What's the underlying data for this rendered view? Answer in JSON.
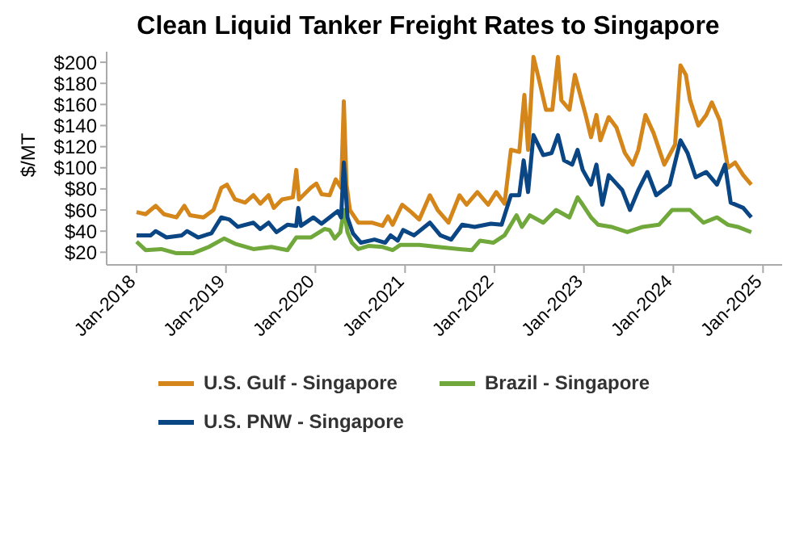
{
  "chart_data": {
    "type": "line",
    "title": "Clean Liquid Tanker Freight Rates to Singapore",
    "ylabel": "$/MT",
    "xlim": [
      "2017-09-01",
      "2025-03-20"
    ],
    "xticks": [
      {
        "value": "2018-01-01",
        "label": "Jan-2018"
      },
      {
        "value": "2019-01-01",
        "label": "Jan-2019"
      },
      {
        "value": "2020-01-01",
        "label": "Jan-2020"
      },
      {
        "value": "2021-01-01",
        "label": "Jan-2021"
      },
      {
        "value": "2022-01-01",
        "label": "Jan-2022"
      },
      {
        "value": "2023-01-01",
        "label": "Jan-2023"
      },
      {
        "value": "2024-01-01",
        "label": "Jan-2024"
      },
      {
        "value": "2025-01-01",
        "label": "Jan-2025"
      }
    ],
    "ylim": [
      8,
      210
    ],
    "yticks": [
      {
        "value": 20,
        "label": "$20"
      },
      {
        "value": 40,
        "label": "$40"
      },
      {
        "value": 60,
        "label": "$60"
      },
      {
        "value": 80,
        "label": "$80"
      },
      {
        "value": 100,
        "label": "$100"
      },
      {
        "value": 120,
        "label": "$120"
      },
      {
        "value": 140,
        "label": "$140"
      },
      {
        "value": 160,
        "label": "$160"
      },
      {
        "value": 180,
        "label": "$180"
      },
      {
        "value": 200,
        "label": "$200"
      }
    ],
    "grid": false,
    "legend": "bottom",
    "marker": "none",
    "line_style": "solid",
    "series": [
      {
        "name": "U.S. Gulf - Singapore",
        "color": "#d4861a",
        "x": [
          "2018-01-01",
          "2018-02-07",
          "2018-03-20",
          "2018-04-23",
          "2018-06-13",
          "2018-07-15",
          "2018-08-07",
          "2018-10-01",
          "2018-11-11",
          "2018-12-13",
          "2019-01-05",
          "2019-02-07",
          "2019-03-20",
          "2019-04-23",
          "2019-05-21",
          "2019-06-24",
          "2019-07-15",
          "2019-08-18",
          "2019-10-01",
          "2019-10-15",
          "2019-10-26",
          "2019-12-13",
          "2020-01-05",
          "2020-01-26",
          "2020-02-28",
          "2020-03-24",
          "2020-04-15",
          "2020-04-26",
          "2020-05-07",
          "2020-05-21",
          "2020-06-24",
          "2020-08-18",
          "2020-10-01",
          "2020-10-23",
          "2020-11-11",
          "2020-12-20",
          "2021-01-26",
          "2021-02-28",
          "2021-04-12",
          "2021-05-14",
          "2021-06-27",
          "2021-08-11",
          "2021-09-09",
          "2021-10-23",
          "2021-12-06",
          "2022-01-08",
          "2022-02-11",
          "2022-03-09",
          "2022-04-12",
          "2022-05-03",
          "2022-05-18",
          "2022-06-09",
          "2022-06-27",
          "2022-07-30",
          "2022-08-25",
          "2022-09-17",
          "2022-10-01",
          "2022-11-03",
          "2022-11-25",
          "2022-12-17",
          "2023-01-08",
          "2023-01-30",
          "2023-02-21",
          "2023-03-09",
          "2023-04-12",
          "2023-05-14",
          "2023-06-17",
          "2023-07-19",
          "2023-08-11",
          "2023-09-09",
          "2023-10-12",
          "2023-11-25",
          "2024-01-08",
          "2024-01-30",
          "2024-02-21",
          "2024-03-09",
          "2024-04-12",
          "2024-05-14",
          "2024-06-06",
          "2024-07-08",
          "2024-08-11",
          "2024-09-09",
          "2024-10-12",
          "2024-11-14"
        ],
        "values": [
          58,
          56,
          64,
          56,
          53,
          64,
          55,
          53,
          60,
          81,
          84,
          70,
          67,
          74,
          66,
          74,
          62,
          70,
          72,
          98,
          70,
          81,
          85,
          75,
          74,
          89,
          81,
          163,
          84,
          60,
          48,
          48,
          45,
          54,
          46,
          65,
          58,
          51,
          74,
          60,
          48,
          74,
          65,
          77,
          65,
          77,
          66,
          117,
          115,
          169,
          117,
          205,
          188,
          155,
          155,
          205,
          164,
          155,
          188,
          169,
          150,
          129,
          150,
          126,
          148,
          138,
          114,
          103,
          117,
          150,
          133,
          103,
          122,
          197,
          188,
          164,
          140,
          150,
          162,
          145,
          100,
          105,
          93,
          84
        ]
      },
      {
        "name": "Brazil - Singapore",
        "color": "#70a83b",
        "x": [
          "2018-01-01",
          "2018-02-07",
          "2018-04-12",
          "2018-06-13",
          "2018-08-18",
          "2018-10-23",
          "2018-12-24",
          "2019-02-07",
          "2019-04-23",
          "2019-07-05",
          "2019-09-09",
          "2019-10-15",
          "2019-12-13",
          "2020-02-07",
          "2020-02-28",
          "2020-03-20",
          "2020-04-12",
          "2020-04-26",
          "2020-05-11",
          "2020-05-29",
          "2020-06-24",
          "2020-08-07",
          "2020-10-01",
          "2020-11-11",
          "2020-12-13",
          "2021-02-28",
          "2021-05-14",
          "2021-08-11",
          "2021-10-01",
          "2021-11-03",
          "2021-12-27",
          "2022-02-11",
          "2022-04-01",
          "2022-04-23",
          "2022-05-25",
          "2022-07-19",
          "2022-09-09",
          "2022-11-03",
          "2022-12-06",
          "2022-12-27",
          "2023-01-30",
          "2023-02-28",
          "2023-04-23",
          "2023-06-27",
          "2023-08-29",
          "2023-11-03",
          "2023-12-27",
          "2024-03-09",
          "2024-05-03",
          "2024-06-27",
          "2024-08-11",
          "2024-09-20",
          "2024-11-14"
        ],
        "values": [
          30,
          22,
          23,
          19,
          19,
          25,
          33,
          28,
          23,
          25,
          22,
          34,
          34,
          42,
          41,
          33,
          39,
          60,
          39,
          29,
          23,
          26,
          25,
          22,
          27,
          27,
          25,
          23,
          22,
          31,
          29,
          36,
          55,
          44,
          55,
          48,
          60,
          53,
          72,
          65,
          53,
          46,
          44,
          39,
          44,
          46,
          60,
          60,
          48,
          53,
          46,
          44,
          39
        ]
      },
      {
        "name": "U.S. PNW - Singapore",
        "color": "#0a4584",
        "x": [
          "2018-01-01",
          "2018-02-28",
          "2018-03-20",
          "2018-05-03",
          "2018-07-05",
          "2018-07-26",
          "2018-09-09",
          "2018-11-03",
          "2018-12-13",
          "2019-01-15",
          "2019-02-18",
          "2019-04-23",
          "2019-05-21",
          "2019-06-24",
          "2019-07-26",
          "2019-09-09",
          "2019-10-15",
          "2019-10-23",
          "2019-11-03",
          "2019-12-24",
          "2020-01-26",
          "2020-02-28",
          "2020-04-01",
          "2020-04-15",
          "2020-04-26",
          "2020-05-11",
          "2020-06-02",
          "2020-07-05",
          "2020-08-29",
          "2020-10-12",
          "2020-11-03",
          "2020-12-02",
          "2020-12-24",
          "2021-02-07",
          "2021-04-12",
          "2021-05-25",
          "2021-07-08",
          "2021-08-22",
          "2021-10-12",
          "2021-12-17",
          "2022-01-30",
          "2022-03-09",
          "2022-04-12",
          "2022-04-30",
          "2022-05-18",
          "2022-06-09",
          "2022-07-19",
          "2022-08-22",
          "2022-09-17",
          "2022-10-12",
          "2022-11-14",
          "2022-12-06",
          "2022-12-27",
          "2023-01-30",
          "2023-02-21",
          "2023-03-17",
          "2023-04-12",
          "2023-06-06",
          "2023-07-08",
          "2023-08-11",
          "2023-09-17",
          "2023-10-23",
          "2023-12-17",
          "2024-01-30",
          "2024-02-28",
          "2024-04-01",
          "2024-05-14",
          "2024-06-27",
          "2024-07-30",
          "2024-08-22",
          "2024-10-12",
          "2024-11-14"
        ],
        "values": [
          36,
          36,
          40,
          34,
          36,
          40,
          34,
          38,
          53,
          51,
          44,
          48,
          42,
          48,
          39,
          46,
          45,
          62,
          45,
          53,
          47,
          53,
          59,
          53,
          105,
          53,
          38,
          29,
          32,
          29,
          36,
          31,
          41,
          36,
          48,
          36,
          32,
          46,
          44,
          47,
          46,
          74,
          74,
          107,
          77,
          131,
          112,
          114,
          131,
          107,
          103,
          117,
          98,
          84,
          103,
          65,
          93,
          79,
          60,
          79,
          96,
          74,
          84,
          126,
          114,
          91,
          96,
          84,
          103,
          67,
          62,
          53
        ]
      }
    ]
  }
}
